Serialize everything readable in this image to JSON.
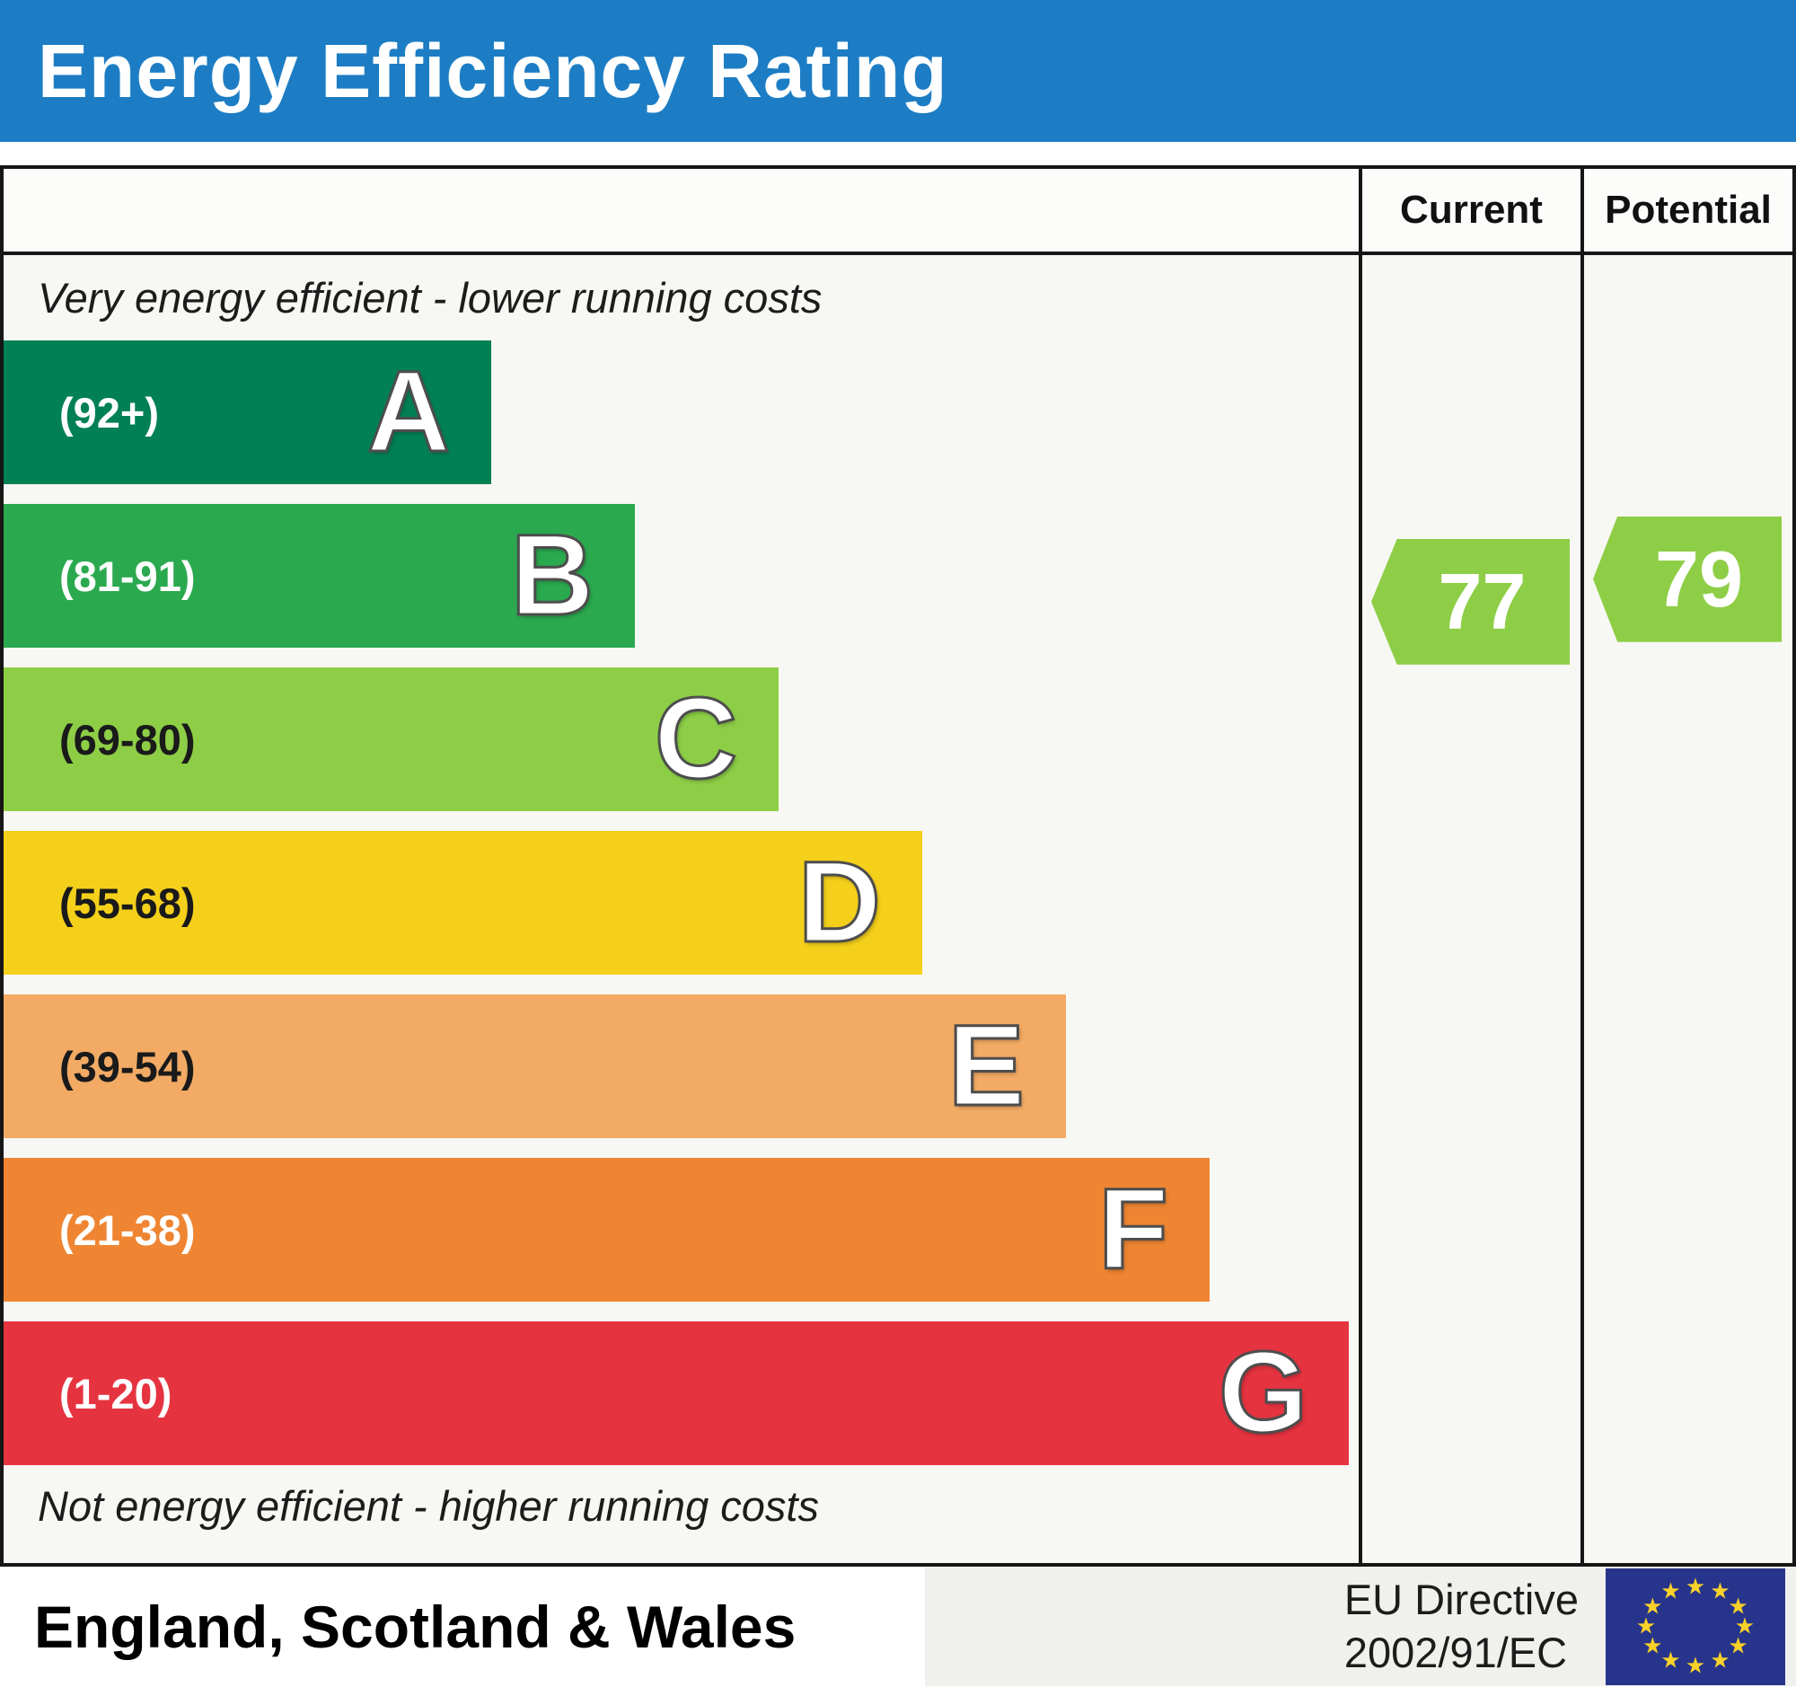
{
  "header": {
    "title": "Energy Efficiency Rating",
    "bg_color": "#1d7dc4"
  },
  "columns": {
    "current_label": "Current",
    "potential_label": "Potential"
  },
  "notes": {
    "top": "Very energy efficient - lower running costs",
    "bottom": "Not energy efficient - higher running costs"
  },
  "footer": {
    "region": "England, Scotland & Wales",
    "eu_directive_line1": "EU Directive",
    "eu_directive_line2": "2002/91/EC",
    "eu_flag_bg": "#27348b",
    "eu_flag_star_color": "#f8d12a"
  },
  "chart_data": {
    "type": "bar",
    "title": "Energy Efficiency Rating",
    "scale": [
      1,
      100
    ],
    "bands": [
      {
        "letter": "A",
        "range": "(92+)",
        "min": 92,
        "max": 100,
        "color": "#008054",
        "width_pct": 36.0,
        "label_color": "#ffffff"
      },
      {
        "letter": "B",
        "range": "(81-91)",
        "min": 81,
        "max": 91,
        "color": "#2ba94f",
        "width_pct": 46.6,
        "label_color": "#ffffff"
      },
      {
        "letter": "C",
        "range": "(69-80)",
        "min": 69,
        "max": 80,
        "color": "#8dce46",
        "width_pct": 57.2,
        "label_color": "#1a1a1a"
      },
      {
        "letter": "D",
        "range": "(55-68)",
        "min": 55,
        "max": 68,
        "color": "#f4d01b",
        "width_pct": 67.8,
        "label_color": "#1a1a1a"
      },
      {
        "letter": "E",
        "range": "(39-54)",
        "min": 39,
        "max": 54,
        "color": "#f2aa64",
        "width_pct": 78.4,
        "label_color": "#1a1a1a"
      },
      {
        "letter": "F",
        "range": "(21-38)",
        "min": 21,
        "max": 38,
        "color": "#ef8532",
        "width_pct": 89.0,
        "label_color": "#ffffff"
      },
      {
        "letter": "G",
        "range": "(1-20)",
        "min": 1,
        "max": 20,
        "color": "#e63340",
        "width_pct": 99.3,
        "label_color": "#ffffff"
      }
    ],
    "current": {
      "value": 77,
      "band": "C",
      "color": "#8dce46"
    },
    "potential": {
      "value": 79,
      "band": "C",
      "color": "#8dce46"
    }
  }
}
